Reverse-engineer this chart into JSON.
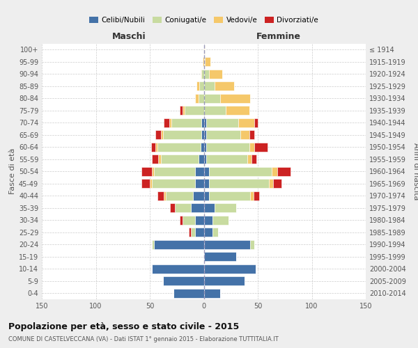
{
  "age_groups": [
    "0-4",
    "5-9",
    "10-14",
    "15-19",
    "20-24",
    "25-29",
    "30-34",
    "35-39",
    "40-44",
    "45-49",
    "50-54",
    "55-59",
    "60-64",
    "65-69",
    "70-74",
    "75-79",
    "80-84",
    "85-89",
    "90-94",
    "95-99",
    "100+"
  ],
  "birth_years": [
    "2010-2014",
    "2005-2009",
    "2000-2004",
    "1995-1999",
    "1990-1994",
    "1985-1989",
    "1980-1984",
    "1975-1979",
    "1970-1974",
    "1965-1969",
    "1960-1964",
    "1955-1959",
    "1950-1954",
    "1945-1949",
    "1940-1944",
    "1935-1939",
    "1930-1934",
    "1925-1929",
    "1920-1924",
    "1915-1919",
    "≤ 1914"
  ],
  "male_celibi": [
    28,
    38,
    48,
    0,
    46,
    8,
    8,
    12,
    10,
    8,
    8,
    5,
    3,
    2,
    2,
    0,
    0,
    0,
    0,
    0,
    0
  ],
  "male_coniugati": [
    0,
    0,
    0,
    0,
    2,
    4,
    12,
    15,
    25,
    40,
    38,
    35,
    40,
    36,
    28,
    18,
    5,
    4,
    2,
    0,
    0
  ],
  "male_vedovi": [
    0,
    0,
    0,
    0,
    0,
    0,
    0,
    0,
    2,
    2,
    2,
    2,
    2,
    2,
    2,
    2,
    3,
    3,
    1,
    1,
    0
  ],
  "male_divorziati": [
    0,
    0,
    0,
    0,
    0,
    2,
    2,
    4,
    6,
    8,
    10,
    6,
    4,
    5,
    5,
    2,
    0,
    0,
    0,
    0,
    0
  ],
  "female_nubili": [
    15,
    38,
    48,
    30,
    43,
    8,
    8,
    10,
    5,
    5,
    5,
    2,
    2,
    2,
    2,
    0,
    0,
    0,
    0,
    0,
    0
  ],
  "female_coniugate": [
    0,
    0,
    0,
    0,
    4,
    5,
    15,
    20,
    38,
    55,
    58,
    38,
    40,
    32,
    30,
    20,
    15,
    10,
    5,
    1,
    0
  ],
  "female_vedove": [
    0,
    0,
    0,
    0,
    0,
    0,
    0,
    0,
    3,
    4,
    5,
    4,
    5,
    8,
    15,
    22,
    28,
    18,
    12,
    5,
    1
  ],
  "female_divorziate": [
    0,
    0,
    0,
    0,
    0,
    0,
    0,
    0,
    5,
    8,
    12,
    5,
    12,
    5,
    3,
    0,
    0,
    0,
    0,
    0,
    0
  ],
  "color_celibi": "#4472a8",
  "color_coniugati": "#c8dba0",
  "color_vedovi": "#f5c86a",
  "color_divorziati": "#cc2222",
  "title": "Popolazione per età, sesso e stato civile - 2015",
  "subtitle": "COMUNE DI CASTELVECCANA (VA) - Dati ISTAT 1° gennaio 2015 - Elaborazione TUTTITALIA.IT",
  "label_maschi": "Maschi",
  "label_femmine": "Femmine",
  "ylabel_left": "Fasce di età",
  "ylabel_right": "Anni di nascita",
  "legend_labels": [
    "Celibi/Nubili",
    "Coniugati/e",
    "Vedovi/e",
    "Divorziati/e"
  ],
  "xlim": 150,
  "bg_color": "#eeeeee",
  "plot_bg_color": "#ffffff",
  "grid_color": "#cccccc"
}
